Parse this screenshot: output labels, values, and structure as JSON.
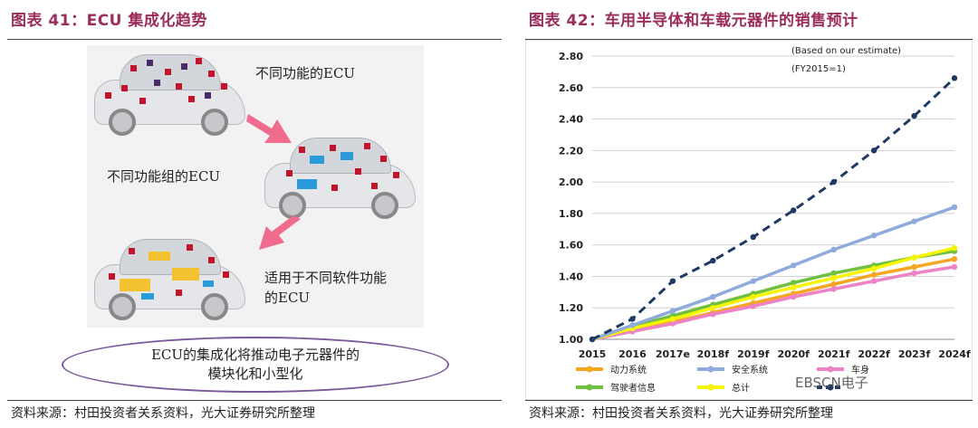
{
  "left": {
    "title": "图表 41：ECU 集成化趋势",
    "labels": {
      "car1": "不同功能的ECU",
      "car2": "不同功能组的ECU",
      "car3_line1": "适用于不同软件功能",
      "car3_line2": "的ECU"
    },
    "oval_line1": "ECU的集成化将推动电子元器件的",
    "oval_line2": "模块化和小型化",
    "source": "资料来源：村田投资者关系资料，光大证券研究所整理"
  },
  "right": {
    "title": "图表 42：车用半导体和车载元器件的销售预计",
    "source": "资料来源：村田投资者关系资料，光大证券研究所整理",
    "watermark": "EBSCN电子"
  },
  "chart_data": {
    "type": "line",
    "annotations": [
      "(Based on our estimate)",
      "(FY2015=1)"
    ],
    "categories": [
      "2015",
      "2016",
      "2017e",
      "2018f",
      "2019f",
      "2020f",
      "2021f",
      "2022f",
      "2023f",
      "2024f"
    ],
    "ylim": [
      1.0,
      2.8
    ],
    "yticks": [
      "1.00",
      "1.20",
      "1.40",
      "1.60",
      "1.80",
      "2.00",
      "2.20",
      "2.40",
      "2.60",
      "2.80"
    ],
    "grid": true,
    "legend_position": "bottom",
    "series": [
      {
        "name": "动力系统",
        "color": "#f5a623",
        "dash": false,
        "values": [
          1.0,
          1.06,
          1.11,
          1.17,
          1.23,
          1.29,
          1.35,
          1.41,
          1.46,
          1.51
        ]
      },
      {
        "name": "安全系统",
        "color": "#8faadc",
        "dash": false,
        "values": [
          1.0,
          1.09,
          1.18,
          1.27,
          1.37,
          1.47,
          1.57,
          1.66,
          1.75,
          1.84
        ]
      },
      {
        "name": "车身",
        "color": "#ee82c7",
        "dash": false,
        "values": [
          1.0,
          1.05,
          1.1,
          1.16,
          1.21,
          1.27,
          1.32,
          1.37,
          1.42,
          1.46
        ]
      },
      {
        "name": "驾驶者信息",
        "color": "#70c040",
        "dash": false,
        "values": [
          1.0,
          1.08,
          1.15,
          1.22,
          1.29,
          1.36,
          1.42,
          1.47,
          1.52,
          1.56
        ]
      },
      {
        "name": "总计",
        "color": "#f5f500",
        "dash": false,
        "values": [
          1.0,
          1.07,
          1.13,
          1.2,
          1.27,
          1.33,
          1.39,
          1.45,
          1.52,
          1.58
        ]
      },
      {
        "name": "",
        "color": "#1f3864",
        "dash": true,
        "values": [
          1.0,
          1.13,
          1.37,
          1.5,
          1.65,
          1.82,
          2.0,
          2.2,
          2.42,
          2.66
        ]
      }
    ]
  }
}
